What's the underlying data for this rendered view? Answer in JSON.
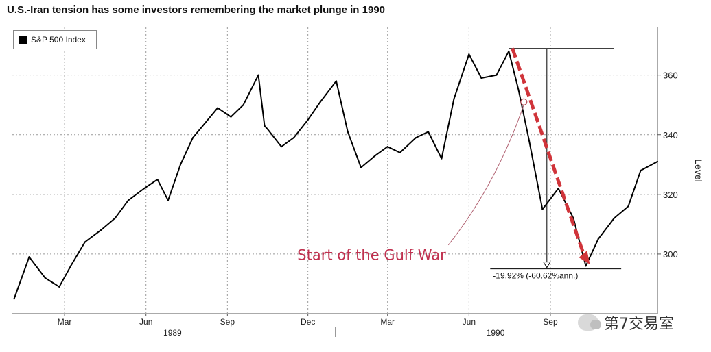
{
  "title": "U.S.-Iran tension has some investors remembering the market plunge in 1990",
  "watermark_text": "第7交易室",
  "colors": {
    "line": "#000000",
    "annotation": "#c0314f",
    "grid": "#999999",
    "dash_arrow": "#d0343a"
  },
  "chart_data": {
    "type": "line",
    "title": "U.S.-Iran tension has some investors remembering the market plunge in 1990",
    "xlabel": "",
    "ylabel": "Level",
    "ylim": [
      280,
      376
    ],
    "yticks": [
      300,
      320,
      340,
      360
    ],
    "grid": true,
    "legend": {
      "position": "top-left",
      "entries": [
        "S&P 500 Index"
      ]
    },
    "x_tick_labels": [
      "Mar",
      "Jun",
      "Sep",
      "Dec",
      "Mar",
      "Jun",
      "Sep"
    ],
    "x_tick_dates": [
      "1989-03-01",
      "1989-06-01",
      "1989-09-01",
      "1989-12-01",
      "1990-03-01",
      "1990-06-01",
      "1990-09-01"
    ],
    "year_labels": [
      {
        "label": "1989",
        "date": "1989-07-01"
      },
      {
        "label": "1990",
        "date": "1990-07-01"
      }
    ],
    "x_range": [
      "1989-01-01",
      "1990-12-31"
    ],
    "series": [
      {
        "name": "S&P 500 Index",
        "x": [
          "1989-01-03",
          "1989-01-20",
          "1989-02-07",
          "1989-02-23",
          "1989-03-08",
          "1989-03-24",
          "1989-04-11",
          "1989-04-27",
          "1989-05-12",
          "1989-05-30",
          "1989-06-14",
          "1989-06-26",
          "1989-07-10",
          "1989-07-24",
          "1989-08-07",
          "1989-08-21",
          "1989-09-05",
          "1989-09-19",
          "1989-10-06",
          "1989-10-13",
          "1989-10-16",
          "1989-11-01",
          "1989-11-15",
          "1989-12-01",
          "1989-12-15",
          "1990-01-02",
          "1990-01-15",
          "1990-01-30",
          "1990-02-15",
          "1990-03-01",
          "1990-03-15",
          "1990-04-02",
          "1990-04-16",
          "1990-05-01",
          "1990-05-15",
          "1990-06-01",
          "1990-06-15",
          "1990-07-02",
          "1990-07-16",
          "1990-07-27",
          "1990-08-08",
          "1990-08-23",
          "1990-09-10",
          "1990-09-27",
          "1990-10-11",
          "1990-10-25",
          "1990-11-12",
          "1990-11-28",
          "1990-12-12",
          "1990-12-31"
        ],
        "values": [
          285,
          299,
          292,
          289,
          296,
          304,
          308,
          312,
          318,
          322,
          325,
          318,
          330,
          339,
          344,
          349,
          346,
          350,
          360,
          343,
          342,
          336,
          339,
          345,
          351,
          358,
          341,
          329,
          333,
          336,
          334,
          339,
          341,
          332,
          352,
          367,
          359,
          360,
          368,
          355,
          338,
          315,
          322,
          312,
          296,
          305,
          312,
          316,
          328,
          331
        ]
      }
    ],
    "annotations": [
      {
        "text": "Start of the Gulf War",
        "date": "1990-08-02",
        "value": 351
      },
      {
        "text": "-19.92% (-60.62%ann.)",
        "from_value": 368.95,
        "to_value": 295.46
      }
    ]
  }
}
